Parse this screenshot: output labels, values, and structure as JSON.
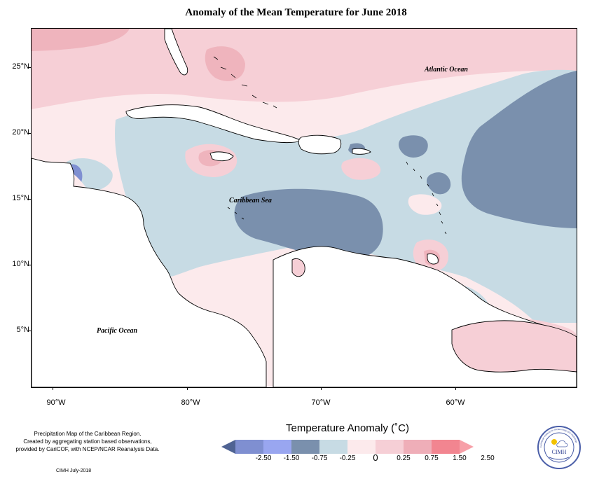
{
  "title": "Anomaly of the Mean Temperature for June 2018",
  "y_axis_labels": [
    "25°N",
    "20°N",
    "15°N",
    "10°N",
    "5°N"
  ],
  "x_axis_labels": [
    "90°W",
    "80°W",
    "70°W",
    "60°W"
  ],
  "ocean_labels": {
    "atlantic": "Atlantic Ocean",
    "caribbean": "Caribbean Sea",
    "pacific": "Pacific Ocean"
  },
  "legend": {
    "title": "Temperature Anomaly (˚C)",
    "ticks": [
      "-2.50",
      "-1.50",
      "-0.75",
      "-0.25",
      "0",
      "0.25",
      "0.75",
      "1.50",
      "2.50"
    ],
    "colors": [
      "#4f6393",
      "#7f8fd1",
      "#99a6f0",
      "#7a90ad",
      "#c7dbe4",
      "#fceaec",
      "#f6cfd6",
      "#efaeb8",
      "#f28590",
      "#f7a0a8"
    ]
  },
  "credit": {
    "lines": [
      "Precipitation Map of the Caribbean Region.",
      "Created by aggregating station based observations,",
      "provided by CariCOF, with NCEP/NCAR Reanalysis Data."
    ],
    "date": "CIMH July-2018"
  },
  "logo": {
    "text": "CIMH",
    "ring_text": "Caribbean Institute for Meteorology and Hydrology"
  }
}
